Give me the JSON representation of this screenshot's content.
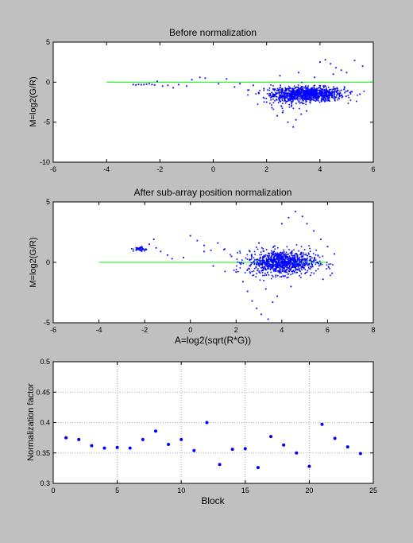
{
  "chart_data": [
    {
      "type": "scatter",
      "title": "Before normalization",
      "xlabel": "",
      "ylabel": "M=log2(G/R)",
      "xlim": [
        -6,
        6
      ],
      "ylim": [
        -10,
        5
      ],
      "xticks": [
        -6,
        -4,
        -2,
        0,
        2,
        4,
        6
      ],
      "yticks": [
        -10,
        -5,
        0,
        5
      ],
      "reference_line": {
        "y": 0,
        "x_range": [
          -4,
          6
        ],
        "color": "#00ff00"
      },
      "point_color": "#0000ff",
      "grid": false,
      "clusters": [
        {
          "x_center": 3.6,
          "y_center": -1.5,
          "x_spread": 0.65,
          "y_spread": 0.45,
          "count": 900
        },
        {
          "x_center": 2.8,
          "y_center": -1.7,
          "x_spread": 0.4,
          "y_spread": 0.6,
          "count": 180
        }
      ],
      "points": [
        [
          -3.0,
          -0.3
        ],
        [
          -2.9,
          -0.35
        ],
        [
          -2.8,
          -0.28
        ],
        [
          -2.7,
          -0.32
        ],
        [
          -2.6,
          -0.3
        ],
        [
          -2.5,
          -0.25
        ],
        [
          -2.4,
          -0.2
        ],
        [
          -2.3,
          -0.3
        ],
        [
          -2.2,
          -0.35
        ],
        [
          -2.1,
          0.1
        ],
        [
          -1.9,
          -0.5
        ],
        [
          -1.7,
          -0.4
        ],
        [
          -1.5,
          -0.7
        ],
        [
          -1.3,
          -0.3
        ],
        [
          -1.0,
          -0.5
        ],
        [
          -0.8,
          0.3
        ],
        [
          -0.5,
          0.6
        ],
        [
          -0.3,
          0.5
        ],
        [
          0.2,
          -0.2
        ],
        [
          0.5,
          0.4
        ],
        [
          0.8,
          -0.6
        ],
        [
          1.0,
          -0.2
        ],
        [
          1.3,
          -1.0
        ],
        [
          1.5,
          -0.4
        ],
        [
          1.7,
          -1.3
        ],
        [
          1.9,
          -0.8
        ],
        [
          2.0,
          -2.5
        ],
        [
          2.2,
          -3.2
        ],
        [
          2.4,
          -4.2
        ],
        [
          2.6,
          -3.8
        ],
        [
          2.8,
          -5.0
        ],
        [
          3.0,
          -5.6
        ],
        [
          3.1,
          -4.7
        ],
        [
          3.3,
          -4.0
        ],
        [
          3.5,
          -3.6
        ],
        [
          3.8,
          0.6
        ],
        [
          4.0,
          2.5
        ],
        [
          4.2,
          2.8
        ],
        [
          4.4,
          2.3
        ],
        [
          4.6,
          1.8
        ],
        [
          4.8,
          1.5
        ],
        [
          5.0,
          1.2
        ],
        [
          5.3,
          2.7
        ],
        [
          5.6,
          2.0
        ],
        [
          5.2,
          -1.2
        ],
        [
          5.5,
          -1.5
        ],
        [
          4.9,
          -0.9
        ],
        [
          4.5,
          1.0
        ],
        [
          3.2,
          1.2
        ],
        [
          2.5,
          0.8
        ]
      ]
    },
    {
      "type": "scatter",
      "title": "After sub-array position normalization",
      "xlabel": "A=log2(sqrt(R*G))",
      "ylabel": "M=log2(G/R)",
      "xlim": [
        -6,
        8
      ],
      "ylim": [
        -5,
        5
      ],
      "xticks": [
        -6,
        -4,
        -2,
        0,
        2,
        4,
        6,
        8
      ],
      "yticks": [
        -5,
        0,
        5
      ],
      "reference_line": {
        "y": 0,
        "x_range": [
          -4,
          6
        ],
        "color": "#00ff00"
      },
      "point_color": "#0000ff",
      "grid": false,
      "clusters": [
        {
          "x_center": 4.0,
          "y_center": 0.0,
          "x_spread": 0.75,
          "y_spread": 0.5,
          "count": 950
        },
        {
          "x_center": -2.2,
          "y_center": 1.1,
          "x_spread": 0.15,
          "y_spread": 0.1,
          "count": 40
        }
      ],
      "points": [
        [
          -1.8,
          1.5
        ],
        [
          -1.5,
          1.2
        ],
        [
          -1.3,
          0.9
        ],
        [
          -1.0,
          0.6
        ],
        [
          -0.8,
          0.3
        ],
        [
          -1.6,
          1.9
        ],
        [
          -0.3,
          0.4
        ],
        [
          0.0,
          2.2
        ],
        [
          0.3,
          1.8
        ],
        [
          0.6,
          1.4
        ],
        [
          0.9,
          1.0
        ],
        [
          1.2,
          1.6
        ],
        [
          1.5,
          1.1
        ],
        [
          1.8,
          0.5
        ],
        [
          2.0,
          -0.8
        ],
        [
          2.3,
          -1.6
        ],
        [
          2.5,
          -2.4
        ],
        [
          2.7,
          -3.2
        ],
        [
          2.9,
          -3.8
        ],
        [
          3.1,
          -4.3
        ],
        [
          3.4,
          -4.7
        ],
        [
          3.6,
          -3.3
        ],
        [
          3.8,
          -2.8
        ],
        [
          4.0,
          3.2
        ],
        [
          4.3,
          3.7
        ],
        [
          4.6,
          4.2
        ],
        [
          4.9,
          3.8
        ],
        [
          5.1,
          3.2
        ],
        [
          5.4,
          2.6
        ],
        [
          5.7,
          1.9
        ],
        [
          6.0,
          1.3
        ],
        [
          6.3,
          0.7
        ],
        [
          5.8,
          -1.4
        ],
        [
          6.2,
          -0.9
        ],
        [
          3.3,
          -2.2
        ],
        [
          4.4,
          -2.0
        ],
        [
          2.6,
          0.9
        ],
        [
          3.0,
          1.6
        ],
        [
          1.0,
          -0.3
        ],
        [
          0.6,
          0.9
        ]
      ]
    },
    {
      "type": "scatter",
      "title": "",
      "xlabel": "Block",
      "ylabel": "Normalization factor",
      "xlim": [
        0,
        25
      ],
      "ylim": [
        0.3,
        0.5
      ],
      "xticks": [
        0,
        5,
        10,
        15,
        20,
        25
      ],
      "yticks": [
        0.3,
        0.35,
        0.4,
        0.45,
        0.5
      ],
      "grid": true,
      "point_color": "#0000ff",
      "x": [
        1,
        2,
        3,
        4,
        5,
        6,
        7,
        8,
        9,
        10,
        11,
        12,
        13,
        14,
        15,
        16,
        17,
        18,
        19,
        20,
        21,
        22,
        23,
        24
      ],
      "y": [
        0.375,
        0.372,
        0.362,
        0.358,
        0.359,
        0.358,
        0.372,
        0.386,
        0.364,
        0.372,
        0.354,
        0.4,
        0.331,
        0.356,
        0.357,
        0.326,
        0.377,
        0.363,
        0.35,
        0.328,
        0.397,
        0.374,
        0.36,
        0.349
      ]
    }
  ]
}
